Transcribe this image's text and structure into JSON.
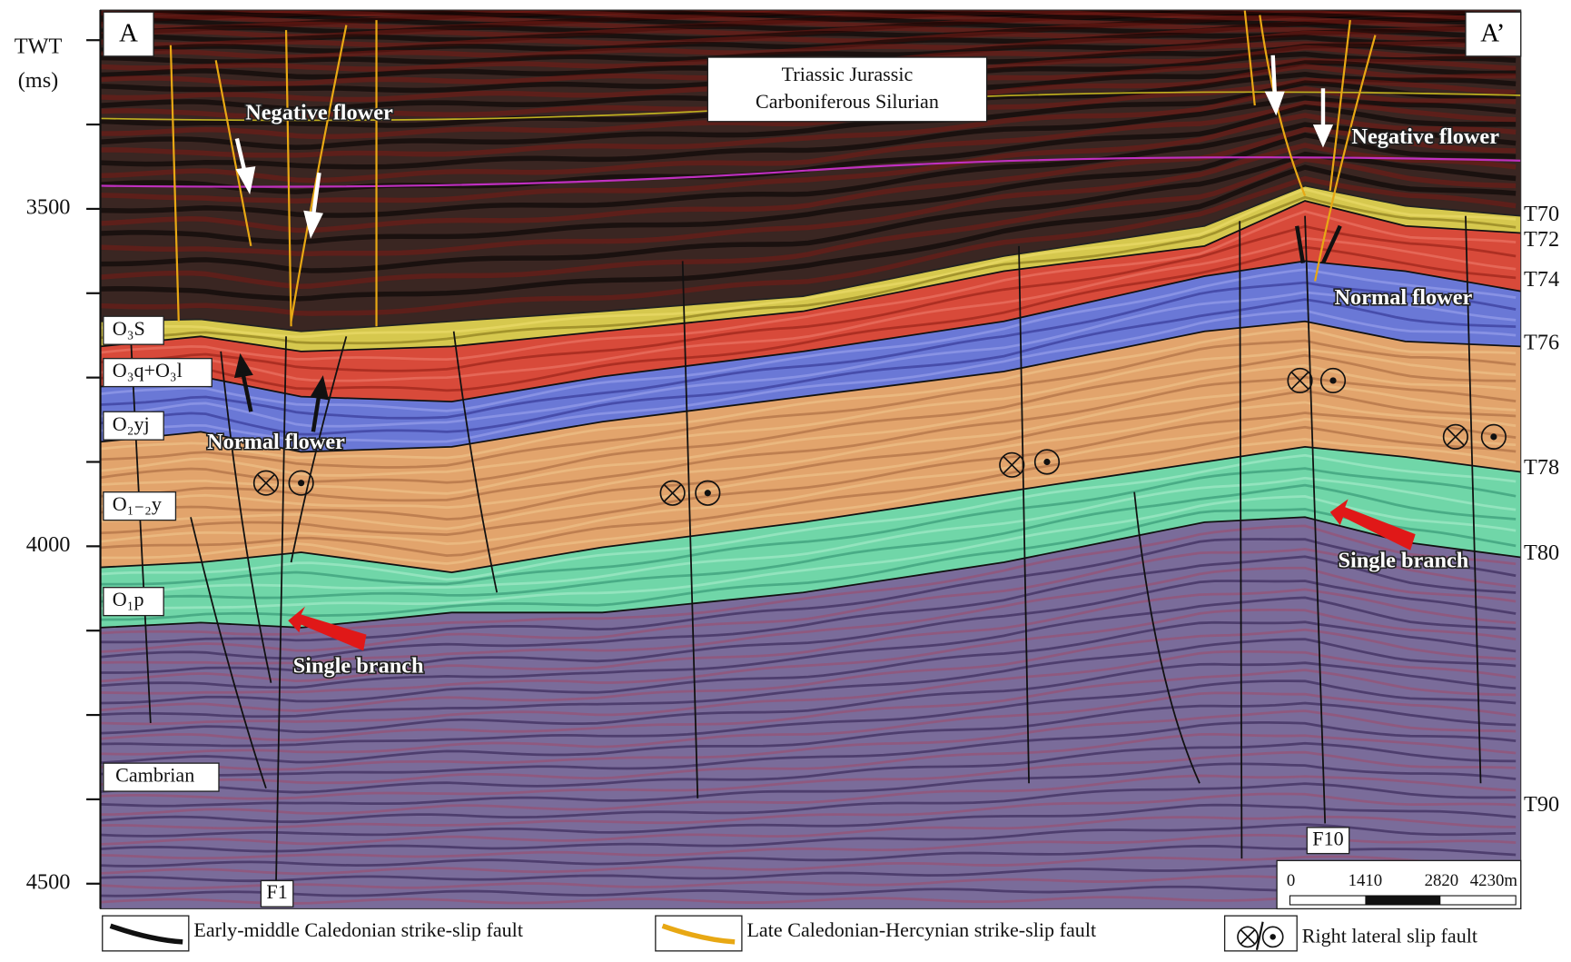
{
  "panel": {
    "left_label": "A",
    "right_label": "A’"
  },
  "axis": {
    "title": "TWT",
    "unit": "(ms)",
    "ticks": [
      3500,
      4000,
      4500
    ]
  },
  "strata_box": {
    "lines": [
      "Triassic  Jurassic",
      "Carboniferous Silurian"
    ]
  },
  "annotations": [
    "Negative flower",
    "Negative flower",
    "Normal flower",
    "Normal flower",
    "Single branch",
    "Single branch"
  ],
  "horizons": [
    "T70",
    "T72",
    "T74",
    "T76",
    "T78",
    "T80",
    "T90"
  ],
  "formations": [
    "O₃S",
    "O₃q+O₃l",
    "O₂yj",
    "O₁₋₂y",
    "O₁p",
    "Cambrian"
  ],
  "faults": [
    "F1",
    "F10"
  ],
  "scale_bar": [
    "0",
    "1410",
    "2820",
    "4230m"
  ],
  "legend": [
    "Early-middle Caledonian strike-slip fault",
    "Late Caledonian-Hercynian strike-slip fault",
    "Right lateral slip fault"
  ]
}
